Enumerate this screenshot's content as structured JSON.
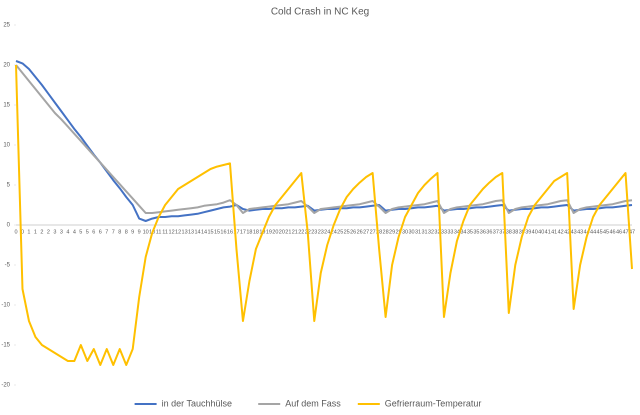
{
  "chart_data": {
    "type": "line",
    "title": "Cold Crash in NC Keg",
    "categories": [
      "0",
      "0",
      "1",
      "1",
      "2",
      "2",
      "3",
      "3",
      "4",
      "4",
      "5",
      "5",
      "6",
      "6",
      "7",
      "7",
      "8",
      "8",
      "9",
      "9",
      "10",
      "10",
      "11",
      "11",
      "12",
      "12",
      "13",
      "13",
      "14",
      "14",
      "15",
      "15",
      "16",
      "16",
      "17",
      "17",
      "18",
      "18",
      "19",
      "19",
      "20",
      "20",
      "21",
      "21",
      "22",
      "22",
      "23",
      "23",
      "24",
      "24",
      "25",
      "25",
      "26",
      "26",
      "27",
      "27",
      "28",
      "28",
      "29",
      "29",
      "30",
      "30",
      "31",
      "31",
      "32",
      "32",
      "33",
      "33",
      "34",
      "34",
      "35",
      "35",
      "36",
      "36",
      "37",
      "37",
      "38",
      "38",
      "39",
      "39",
      "40",
      "40",
      "41",
      "41",
      "42",
      "42",
      "43",
      "43",
      "44",
      "44",
      "45",
      "45",
      "46",
      "46",
      "47",
      "47"
    ],
    "series": [
      {
        "name": "in der Tauchhülse",
        "color": "#4472c4",
        "values": [
          20.5,
          20.2,
          19.5,
          18.5,
          17.5,
          16.4,
          15.3,
          14.2,
          13.1,
          12,
          11,
          9.9,
          8.8,
          7.8,
          6.7,
          5.6,
          4.6,
          3.5,
          2.5,
          0.8,
          0.5,
          0.8,
          1,
          1,
          1.1,
          1.1,
          1.2,
          1.3,
          1.4,
          1.6,
          1.8,
          2,
          2.2,
          2.3,
          2.5,
          2,
          1.8,
          1.9,
          2,
          2,
          2.1,
          2.1,
          2.2,
          2.2,
          2.3,
          2.4,
          1.8,
          1.9,
          2,
          2,
          2.1,
          2.1,
          2.2,
          2.2,
          2.3,
          2.4,
          2.5,
          1.8,
          1.9,
          2,
          2,
          2.1,
          2.2,
          2.2,
          2.3,
          2.4,
          1.8,
          1.9,
          2,
          2,
          2.1,
          2.2,
          2.2,
          2.3,
          2.4,
          2.5,
          1.8,
          1.9,
          2,
          2,
          2.1,
          2.2,
          2.2,
          2.3,
          2.4,
          2.5,
          1.8,
          1.9,
          2,
          2,
          2.1,
          2.2,
          2.2,
          2.3,
          2.4,
          2.5
        ]
      },
      {
        "name": "Auf dem Fass",
        "color": "#a5a5a5",
        "values": [
          20,
          19,
          18,
          17,
          16,
          15,
          14,
          13.2,
          12.3,
          11.4,
          10.5,
          9.6,
          8.7,
          7.8,
          6.9,
          6,
          5.1,
          4.2,
          3.3,
          2.4,
          1.5,
          1.5,
          1.6,
          1.7,
          1.8,
          1.9,
          2,
          2.1,
          2.2,
          2.4,
          2.5,
          2.6,
          2.8,
          3.1,
          2.5,
          1.5,
          2,
          2.1,
          2.2,
          2.3,
          2.4,
          2.5,
          2.6,
          2.8,
          3,
          2.3,
          1.5,
          2,
          2.1,
          2.2,
          2.3,
          2.4,
          2.5,
          2.6,
          2.8,
          3,
          2.3,
          1.5,
          2,
          2.2,
          2.3,
          2.4,
          2.5,
          2.6,
          2.8,
          3,
          1.5,
          2,
          2.2,
          2.3,
          2.4,
          2.5,
          2.6,
          2.8,
          3,
          3.1,
          1.5,
          2,
          2.2,
          2.3,
          2.4,
          2.5,
          2.6,
          2.8,
          3,
          3.1,
          1.5,
          2,
          2.2,
          2.3,
          2.4,
          2.5,
          2.6,
          2.8,
          3,
          3.1
        ]
      },
      {
        "name": "Gefrierraum-Temperatur",
        "color": "#ffc000",
        "values": [
          20,
          -8,
          -12,
          -14,
          -15,
          -15.5,
          -16,
          -16.5,
          -17,
          -17,
          -15,
          -17,
          -15.5,
          -17.5,
          -15.5,
          -17.5,
          -15.5,
          -17.5,
          -15.5,
          -9,
          -4,
          -1,
          1,
          2.5,
          3.5,
          4.5,
          5,
          5.5,
          6,
          6.5,
          7,
          7.3,
          7.5,
          7.7,
          -3,
          -12,
          -7,
          -3,
          -1,
          1,
          2.5,
          3.5,
          4.5,
          5.5,
          6.5,
          -1,
          -12,
          -6,
          -2.5,
          0,
          2,
          3.5,
          4.5,
          5.3,
          6,
          6.5,
          -3,
          -11.5,
          -5,
          -1.5,
          1,
          2.5,
          4,
          5,
          5.8,
          6.5,
          -11.5,
          -6,
          -2,
          0.5,
          2.5,
          3.5,
          4.5,
          5.3,
          6,
          6.5,
          -11,
          -5,
          -1.5,
          1,
          2.5,
          3.5,
          4.5,
          5.5,
          6,
          6.5,
          -10.5,
          -5,
          -1.5,
          1,
          2.5,
          3.5,
          4.5,
          5.5,
          6.5,
          -5.5
        ]
      }
    ],
    "ylim": [
      -20,
      25
    ],
    "yticks": [
      -20,
      -15,
      -10,
      -5,
      0,
      5,
      10,
      15,
      20,
      25
    ],
    "grid": false,
    "legend": "bottom"
  }
}
